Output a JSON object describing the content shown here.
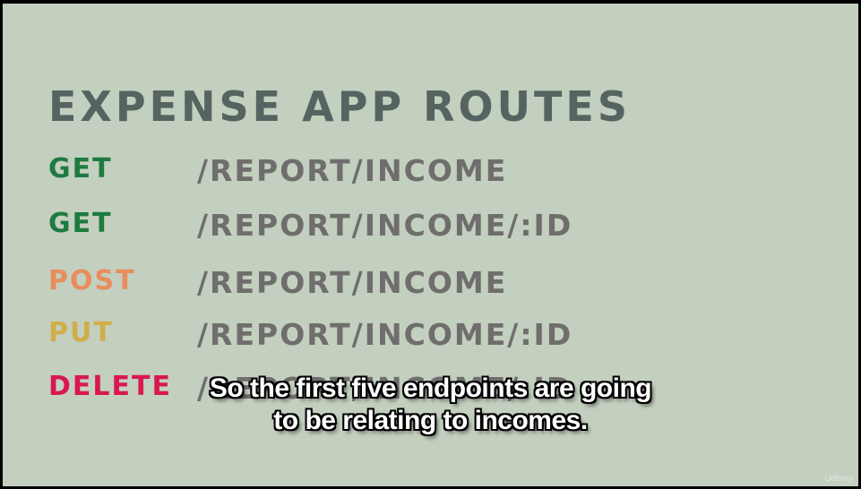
{
  "slide": {
    "title": "EXPENSE APP ROUTES",
    "routes": [
      {
        "method": "GET",
        "path": "/REPORT/INCOME",
        "color": "#1e7b40"
      },
      {
        "method": "GET",
        "path": "/REPORT/INCOME/:ID",
        "color": "#1e7b40"
      },
      {
        "method": "POST",
        "path": "/REPORT/INCOME",
        "color": "#e98d5c"
      },
      {
        "method": "PUT",
        "path": "/REPORT/INCOME/:ID",
        "color": "#d1ad4a"
      },
      {
        "method": "DELETE",
        "path": "/REPORT/INCOME/:ID",
        "color": "#d9184f"
      }
    ]
  },
  "subtitle": {
    "line1": "So the first five endpoints are going",
    "line2": "to be relating to incomes."
  },
  "watermark": "Udemy",
  "colors": {
    "background": "#c3cfbf",
    "title": "#566461",
    "path": "#6f6e6d"
  }
}
